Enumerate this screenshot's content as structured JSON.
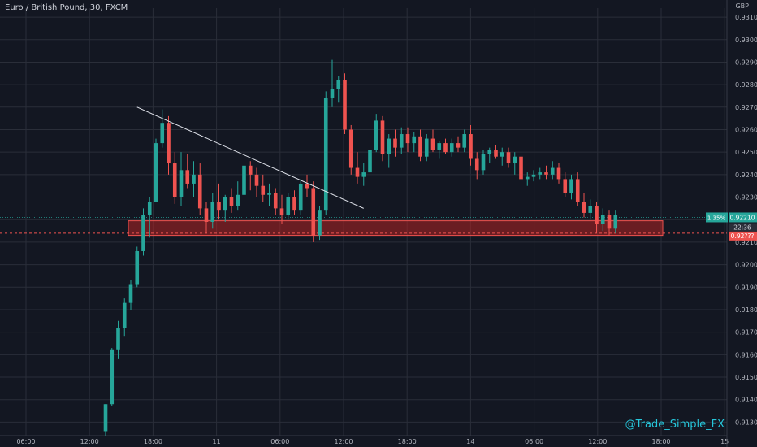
{
  "header": {
    "title": "Euro / British Pound, 30, FXCM"
  },
  "axis": {
    "currency": "GBP"
  },
  "watermark": "@Trade_Simple_FX",
  "colors": {
    "background": "#131722",
    "up": "#26a69a",
    "down": "#ef5350",
    "grid": "#2a2e39",
    "text": "#b2b5be",
    "box": "#b22222"
  },
  "chart_data": {
    "type": "candlestick",
    "ylim": [
      0.9124,
      0.9314
    ],
    "y_ticks": [
      "0.93100",
      "0.93000",
      "0.92900",
      "0.92800",
      "0.92700",
      "0.92600",
      "0.92500",
      "0.92400",
      "0.92300",
      "0.92200",
      "0.92100",
      "0.92000",
      "0.91900",
      "0.91800",
      "0.91700",
      "0.91600",
      "0.91500",
      "0.91400",
      "0.91300"
    ],
    "x_ticks": [
      "06:00",
      "12:00",
      "18:00",
      "11",
      "06:00",
      "12:00",
      "18:00",
      "14",
      "06:00",
      "12:00",
      "18:00",
      "15"
    ],
    "last_price": "0.92210",
    "change_label": "1.35%",
    "countdown": "22:36",
    "current_price_partial": "0.92???",
    "candles": [
      [
        0.9126,
        0.9138,
        0.9124,
        0.9138
      ],
      [
        0.9138,
        0.9163,
        0.9137,
        0.9162
      ],
      [
        0.9162,
        0.9175,
        0.9158,
        0.9172
      ],
      [
        0.9172,
        0.9185,
        0.9168,
        0.9183
      ],
      [
        0.9183,
        0.9193,
        0.918,
        0.9191
      ],
      [
        0.9191,
        0.9208,
        0.919,
        0.9206
      ],
      [
        0.9206,
        0.9225,
        0.9204,
        0.9222
      ],
      [
        0.9222,
        0.923,
        0.9212,
        0.9228
      ],
      [
        0.9228,
        0.9256,
        0.9228,
        0.9254
      ],
      [
        0.9254,
        0.9269,
        0.9252,
        0.9263
      ],
      [
        0.9263,
        0.9266,
        0.924,
        0.9245
      ],
      [
        0.9245,
        0.925,
        0.9227,
        0.923
      ],
      [
        0.923,
        0.925,
        0.9226,
        0.9242
      ],
      [
        0.9242,
        0.9249,
        0.9234,
        0.9236
      ],
      [
        0.9236,
        0.9246,
        0.923,
        0.924
      ],
      [
        0.924,
        0.9245,
        0.9222,
        0.9225
      ],
      [
        0.9225,
        0.9228,
        0.9214,
        0.9219
      ],
      [
        0.9219,
        0.9232,
        0.9216,
        0.9228
      ],
      [
        0.9228,
        0.9236,
        0.922,
        0.9224
      ],
      [
        0.9224,
        0.9231,
        0.9219,
        0.923
      ],
      [
        0.923,
        0.9234,
        0.9223,
        0.9226
      ],
      [
        0.9226,
        0.9237,
        0.9224,
        0.9231
      ],
      [
        0.9231,
        0.9245,
        0.9229,
        0.9244
      ],
      [
        0.9244,
        0.9246,
        0.9233,
        0.924
      ],
      [
        0.924,
        0.9243,
        0.923,
        0.9235
      ],
      [
        0.9235,
        0.924,
        0.9228,
        0.9231
      ],
      [
        0.9231,
        0.9236,
        0.9226,
        0.9232
      ],
      [
        0.9232,
        0.9234,
        0.9222,
        0.9225
      ],
      [
        0.9225,
        0.9231,
        0.9218,
        0.9222
      ],
      [
        0.9222,
        0.9232,
        0.922,
        0.923
      ],
      [
        0.923,
        0.9233,
        0.9222,
        0.9224
      ],
      [
        0.9224,
        0.9238,
        0.9222,
        0.9236
      ],
      [
        0.9236,
        0.924,
        0.923,
        0.9234
      ],
      [
        0.9234,
        0.9237,
        0.921,
        0.9213
      ],
      [
        0.9213,
        0.9226,
        0.9211,
        0.9224
      ],
      [
        0.9224,
        0.9277,
        0.9222,
        0.9274
      ],
      [
        0.9274,
        0.9291,
        0.927,
        0.9278
      ],
      [
        0.9278,
        0.9284,
        0.9272,
        0.9282
      ],
      [
        0.9282,
        0.9285,
        0.9258,
        0.926
      ],
      [
        0.926,
        0.9262,
        0.924,
        0.9243
      ],
      [
        0.9243,
        0.925,
        0.9236,
        0.9239
      ],
      [
        0.9239,
        0.9245,
        0.9235,
        0.9241
      ],
      [
        0.9241,
        0.9254,
        0.9238,
        0.9251
      ],
      [
        0.9251,
        0.9267,
        0.925,
        0.9264
      ],
      [
        0.9264,
        0.9266,
        0.9246,
        0.9249
      ],
      [
        0.9249,
        0.9258,
        0.9243,
        0.9256
      ],
      [
        0.9256,
        0.926,
        0.9248,
        0.9252
      ],
      [
        0.9252,
        0.9261,
        0.9249,
        0.9258
      ],
      [
        0.9258,
        0.9261,
        0.925,
        0.9254
      ],
      [
        0.9254,
        0.9259,
        0.925,
        0.9257
      ],
      [
        0.9257,
        0.926,
        0.9246,
        0.9248
      ],
      [
        0.9248,
        0.9258,
        0.9246,
        0.9256
      ],
      [
        0.9256,
        0.926,
        0.925,
        0.9251
      ],
      [
        0.9251,
        0.9255,
        0.9247,
        0.9254
      ],
      [
        0.9254,
        0.9256,
        0.9249,
        0.925
      ],
      [
        0.925,
        0.9256,
        0.9248,
        0.9254
      ],
      [
        0.9254,
        0.9257,
        0.925,
        0.9252
      ],
      [
        0.9252,
        0.926,
        0.925,
        0.9258
      ],
      [
        0.9258,
        0.9262,
        0.9244,
        0.9247
      ],
      [
        0.9247,
        0.925,
        0.9238,
        0.9242
      ],
      [
        0.9242,
        0.9251,
        0.924,
        0.9249
      ],
      [
        0.9249,
        0.9252,
        0.9245,
        0.9251
      ],
      [
        0.9251,
        0.9253,
        0.9247,
        0.9248
      ],
      [
        0.9248,
        0.9252,
        0.9244,
        0.925
      ],
      [
        0.925,
        0.9252,
        0.9243,
        0.9245
      ],
      [
        0.9245,
        0.925,
        0.924,
        0.9248
      ],
      [
        0.9248,
        0.9249,
        0.9236,
        0.9238
      ],
      [
        0.9238,
        0.9241,
        0.9235,
        0.9239
      ],
      [
        0.9239,
        0.9242,
        0.9237,
        0.924
      ],
      [
        0.924,
        0.9243,
        0.9238,
        0.9241
      ],
      [
        0.9241,
        0.9244,
        0.9238,
        0.924
      ],
      [
        0.924,
        0.9246,
        0.9238,
        0.9243
      ],
      [
        0.9243,
        0.9245,
        0.9236,
        0.9238
      ],
      [
        0.9238,
        0.9241,
        0.923,
        0.9232
      ],
      [
        0.9232,
        0.924,
        0.9229,
        0.9238
      ],
      [
        0.9238,
        0.9241,
        0.9226,
        0.9228
      ],
      [
        0.9228,
        0.9232,
        0.9221,
        0.9223
      ],
      [
        0.9223,
        0.9229,
        0.922,
        0.9226
      ],
      [
        0.9226,
        0.9228,
        0.9214,
        0.9218
      ],
      [
        0.9218,
        0.9225,
        0.9215,
        0.9222
      ],
      [
        0.9222,
        0.9224,
        0.9213,
        0.9216
      ],
      [
        0.9216,
        0.9224,
        0.9214,
        0.9222
      ]
    ],
    "trendline": {
      "from": [
        5,
        0.927
      ],
      "to": [
        41,
        0.9225
      ]
    },
    "support_zone": {
      "top": 0.92195,
      "bottom": 0.9213
    },
    "current_price_line": 0.9214
  }
}
